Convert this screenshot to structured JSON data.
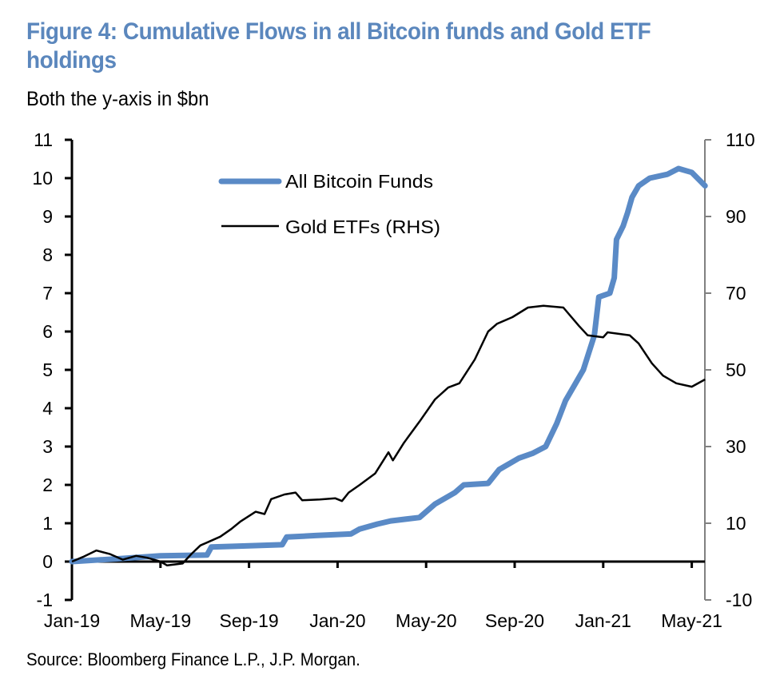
{
  "header": {
    "title": "Figure 4: Cumulative Flows in all Bitcoin funds and Gold ETF holdings",
    "subtitle": "Both the y-axis in $bn"
  },
  "footer": {
    "source": "Source: Bloomberg Finance L.P., J.P. Morgan."
  },
  "colors": {
    "title": "#5b87bd",
    "bitcoin": "#5a8ac6",
    "gold": "#000000",
    "right_axis": "#808080"
  },
  "chart_data": {
    "type": "line",
    "title": "Figure 4: Cumulative Flows in all Bitcoin funds and Gold ETF holdings",
    "subtitle": "Both the y-axis in $bn",
    "xlabel": "",
    "ylabel": "$bn",
    "y2label": "$bn",
    "x_start": "Jan-19",
    "x_unit": "months since Jan-2019",
    "x_range": [
      0,
      28.6
    ],
    "x_ticks": [
      {
        "label": "Jan-19",
        "month": 0
      },
      {
        "label": "May-19",
        "month": 4
      },
      {
        "label": "Sep-19",
        "month": 8
      },
      {
        "label": "Jan-20",
        "month": 12
      },
      {
        "label": "May-20",
        "month": 16
      },
      {
        "label": "Sep-20",
        "month": 20
      },
      {
        "label": "Jan-21",
        "month": 24
      },
      {
        "label": "May-21",
        "month": 28
      }
    ],
    "ylim": [
      -1,
      11
    ],
    "y_ticks": [
      "-1",
      "0",
      "1",
      "2",
      "3",
      "4",
      "5",
      "6",
      "7",
      "8",
      "9",
      "10",
      "11"
    ],
    "y2lim": [
      -10,
      110
    ],
    "y2_ticks": [
      "-10",
      "10",
      "30",
      "50",
      "70",
      "90",
      "110"
    ],
    "grid": false,
    "legend": {
      "placement": "top-center",
      "entries": [
        "All Bitcoin Funds",
        "Gold ETFs (RHS)"
      ]
    },
    "series": [
      {
        "name": "All Bitcoin Funds",
        "axis": "left",
        "points": [
          [
            0,
            0
          ],
          [
            2,
            0.07
          ],
          [
            4,
            0.15
          ],
          [
            6.1,
            0.17
          ],
          [
            6.3,
            0.38
          ],
          [
            8,
            0.41
          ],
          [
            9.5,
            0.44
          ],
          [
            9.7,
            0.64
          ],
          [
            11,
            0.68
          ],
          [
            12.6,
            0.72
          ],
          [
            13,
            0.85
          ],
          [
            13.8,
            0.98
          ],
          [
            14.4,
            1.06
          ],
          [
            15.7,
            1.15
          ],
          [
            16.4,
            1.5
          ],
          [
            17.3,
            1.8
          ],
          [
            17.7,
            2.0
          ],
          [
            18.8,
            2.04
          ],
          [
            19.3,
            2.4
          ],
          [
            20.2,
            2.7
          ],
          [
            20.8,
            2.82
          ],
          [
            21.4,
            3.0
          ],
          [
            21.9,
            3.6
          ],
          [
            22.3,
            4.2
          ],
          [
            22.7,
            4.6
          ],
          [
            23.1,
            5.0
          ],
          [
            23.6,
            5.9
          ],
          [
            23.8,
            6.9
          ],
          [
            24.3,
            7.0
          ],
          [
            24.5,
            7.4
          ],
          [
            24.6,
            8.4
          ],
          [
            24.9,
            8.75
          ],
          [
            25.1,
            9.1
          ],
          [
            25.3,
            9.5
          ],
          [
            25.6,
            9.8
          ],
          [
            26.1,
            10.0
          ],
          [
            26.9,
            10.1
          ],
          [
            27.4,
            10.25
          ],
          [
            28.0,
            10.15
          ],
          [
            28.6,
            9.8
          ]
        ]
      },
      {
        "name": "Gold ETFs (RHS)",
        "axis": "right",
        "points": [
          [
            0,
            0
          ],
          [
            0.5,
            1.2
          ],
          [
            1.1,
            2.9
          ],
          [
            1.7,
            2.0
          ],
          [
            2.3,
            0.5
          ],
          [
            2.9,
            1.5
          ],
          [
            3.4,
            1.0
          ],
          [
            4,
            0
          ],
          [
            4.3,
            -1
          ],
          [
            5,
            -0.5
          ],
          [
            5.4,
            2.0
          ],
          [
            5.8,
            4.2
          ],
          [
            6.7,
            6.5
          ],
          [
            7.2,
            8.5
          ],
          [
            7.6,
            10.4
          ],
          [
            8.3,
            13
          ],
          [
            8.7,
            12.4
          ],
          [
            9,
            16.3
          ],
          [
            9.6,
            17.5
          ],
          [
            10.1,
            18
          ],
          [
            10.4,
            16
          ],
          [
            11.2,
            16.2
          ],
          [
            11.9,
            16.5
          ],
          [
            12.2,
            15.8
          ],
          [
            12.5,
            18
          ],
          [
            13,
            20
          ],
          [
            13.7,
            23
          ],
          [
            14.3,
            28.5
          ],
          [
            14.5,
            26.4
          ],
          [
            15,
            31
          ],
          [
            15.7,
            36.5
          ],
          [
            16.4,
            42.3
          ],
          [
            17,
            45.4
          ],
          [
            17.5,
            46.5
          ],
          [
            18.2,
            52.7
          ],
          [
            18.8,
            60
          ],
          [
            19.2,
            62
          ],
          [
            19.9,
            63.75
          ],
          [
            20.6,
            66.25
          ],
          [
            21.3,
            66.7
          ],
          [
            22.2,
            66.25
          ],
          [
            22.9,
            61.5
          ],
          [
            23.3,
            59
          ],
          [
            24,
            58.5
          ],
          [
            24.2,
            59.8
          ],
          [
            24.7,
            59.4
          ],
          [
            25.2,
            59
          ],
          [
            25.6,
            56.9
          ],
          [
            26.2,
            51.7
          ],
          [
            26.7,
            48.5
          ],
          [
            27.3,
            46.5
          ],
          [
            28,
            45.6
          ],
          [
            28.6,
            47.5
          ]
        ]
      }
    ]
  }
}
